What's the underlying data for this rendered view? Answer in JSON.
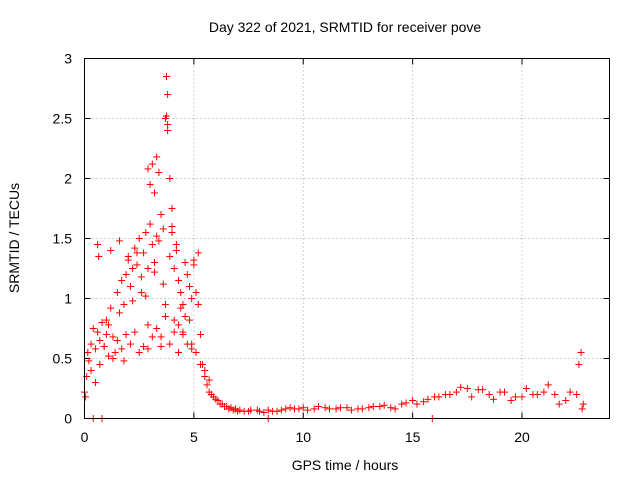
{
  "chart_data": {
    "type": "scatter",
    "title": "Day 322 of 2021, SRMTID for receiver pove",
    "xlabel": "GPS time / hours",
    "ylabel": "SRMTID / TECUs",
    "xlim": [
      0,
      24
    ],
    "ylim": [
      0,
      3
    ],
    "x_ticks": [
      0,
      5,
      10,
      15,
      20
    ],
    "x_tick_labels": [
      "0",
      "5",
      "10",
      "15",
      "20"
    ],
    "y_ticks": [
      0,
      0.5,
      1,
      1.5,
      2,
      2.5,
      3
    ],
    "y_tick_labels": [
      "0",
      "0.5",
      "1",
      "1.5",
      "2",
      "2.5",
      "3"
    ],
    "grid": true,
    "marker": "+",
    "color": "#ff0000",
    "series": [
      {
        "name": "SRMTID",
        "x": [
          0.0,
          0.05,
          0.1,
          0.15,
          0.2,
          0.3,
          0.4,
          0.5,
          0.6,
          0.7,
          0.8,
          0.9,
          1.0,
          1.1,
          1.2,
          1.3,
          1.4,
          1.5,
          1.6,
          1.7,
          1.8,
          1.9,
          2.0,
          2.1,
          2.2,
          2.3,
          2.4,
          2.5,
          2.6,
          2.7,
          2.8,
          2.9,
          3.0,
          3.1,
          3.2,
          3.3,
          3.4,
          3.5,
          3.6,
          3.7,
          3.75,
          3.8,
          3.9,
          4.0,
          4.1,
          4.2,
          4.3,
          4.4,
          4.5,
          4.6,
          4.7,
          4.8,
          4.9,
          5.0,
          5.1,
          5.2,
          5.3,
          5.4,
          5.5,
          5.6,
          5.7,
          5.8,
          5.9,
          6.0,
          6.2,
          6.4,
          6.6,
          6.8,
          7.0,
          7.3,
          7.6,
          8.0,
          8.4,
          8.8,
          9.2,
          9.6,
          10.0,
          10.5,
          11.0,
          11.5,
          12.0,
          12.5,
          13.0,
          13.5,
          14.0,
          14.5,
          15.0,
          15.5,
          16.0,
          16.5,
          17.0,
          17.5,
          18.0,
          18.5,
          19.0,
          19.5,
          20.0,
          20.5,
          21.0,
          21.5,
          22.0,
          22.5,
          22.7,
          22.8,
          0.3,
          0.5,
          0.7,
          0.9,
          1.1,
          1.3,
          1.5,
          1.7,
          1.9,
          2.1,
          2.3,
          2.5,
          2.7,
          2.9,
          3.1,
          3.3,
          3.5,
          3.7,
          3.9,
          4.1,
          4.3,
          4.5,
          4.7,
          4.9,
          5.1,
          5.3,
          2.2,
          2.6,
          3.0,
          3.4,
          3.8,
          4.2,
          4.6,
          1.2,
          1.6,
          2.0,
          2.4,
          2.8,
          3.2,
          3.6,
          4.0,
          4.4,
          4.8,
          5.2,
          1.8,
          2.9,
          3.5,
          4.1,
          4.5,
          5.0,
          3.75,
          3.8,
          3.3,
          3.9,
          4.0,
          3.2,
          0.6,
          0.65,
          1.0,
          2.9,
          3.1,
          3.7,
          4.3,
          4.9,
          5.5,
          5.7,
          6.1,
          6.3,
          6.5,
          6.7,
          6.9,
          7.1,
          7.5,
          7.9,
          8.2,
          8.6,
          9.0,
          9.4,
          9.8,
          10.2,
          10.7,
          11.2,
          11.7,
          12.2,
          12.7,
          13.2,
          13.7,
          14.2,
          14.7,
          15.2,
          15.7,
          16.2,
          16.7,
          17.2,
          17.7,
          18.2,
          18.7,
          19.2,
          19.7,
          20.2,
          20.7,
          21.2,
          21.7,
          22.2,
          22.6,
          22.75,
          0.4,
          0.8,
          8.4,
          15.9
        ],
        "y": [
          0.22,
          0.18,
          0.35,
          0.55,
          0.48,
          0.62,
          0.75,
          0.58,
          0.72,
          0.65,
          0.8,
          0.6,
          0.7,
          0.78,
          0.92,
          0.68,
          0.55,
          1.05,
          0.88,
          1.15,
          0.95,
          1.2,
          1.35,
          1.1,
          0.98,
          1.42,
          1.28,
          1.5,
          1.18,
          1.38,
          1.55,
          1.25,
          1.62,
          1.45,
          1.3,
          1.52,
          1.48,
          1.7,
          1.58,
          2.5,
          2.85,
          2.7,
          1.35,
          1.6,
          1.25,
          1.4,
          1.15,
          1.05,
          0.95,
          1.3,
          1.2,
          1.1,
          1.0,
          1.32,
          1.05,
          0.95,
          0.7,
          0.45,
          0.35,
          0.28,
          0.22,
          0.2,
          0.18,
          0.16,
          0.12,
          0.1,
          0.08,
          0.07,
          0.06,
          0.06,
          0.07,
          0.06,
          0.07,
          0.06,
          0.08,
          0.08,
          0.09,
          0.08,
          0.09,
          0.08,
          0.09,
          0.08,
          0.09,
          0.1,
          0.09,
          0.12,
          0.15,
          0.14,
          0.18,
          0.2,
          0.22,
          0.25,
          0.24,
          0.2,
          0.22,
          0.15,
          0.18,
          0.2,
          0.22,
          0.2,
          0.15,
          0.2,
          0.55,
          0.12,
          0.4,
          0.3,
          0.45,
          0.6,
          0.52,
          0.5,
          0.65,
          0.58,
          0.7,
          0.62,
          0.72,
          0.55,
          0.6,
          0.58,
          0.68,
          0.75,
          0.6,
          0.85,
          0.62,
          0.72,
          0.55,
          0.7,
          0.62,
          0.58,
          0.55,
          0.45,
          1.25,
          1.05,
          1.95,
          2.05,
          2.4,
          1.45,
          0.85,
          1.4,
          1.48,
          1.32,
          1.38,
          1.02,
          1.22,
          1.12,
          1.75,
          0.92,
          0.82,
          1.38,
          0.48,
          0.78,
          0.68,
          0.82,
          0.72,
          1.28,
          2.52,
          2.45,
          2.18,
          2.0,
          1.55,
          1.88,
          1.45,
          1.35,
          0.82,
          2.08,
          2.12,
          0.95,
          0.78,
          0.62,
          0.4,
          0.32,
          0.15,
          0.12,
          0.1,
          0.09,
          0.08,
          0.07,
          0.06,
          0.07,
          0.05,
          0.06,
          0.07,
          0.09,
          0.08,
          0.07,
          0.1,
          0.08,
          0.09,
          0.07,
          0.08,
          0.1,
          0.11,
          0.08,
          0.13,
          0.12,
          0.16,
          0.18,
          0.2,
          0.26,
          0.18,
          0.24,
          0.16,
          0.22,
          0.18,
          0.25,
          0.2,
          0.28,
          0.12,
          0.22,
          0.45,
          0.08,
          0.0,
          0.0,
          0.0,
          0.0
        ]
      }
    ]
  }
}
